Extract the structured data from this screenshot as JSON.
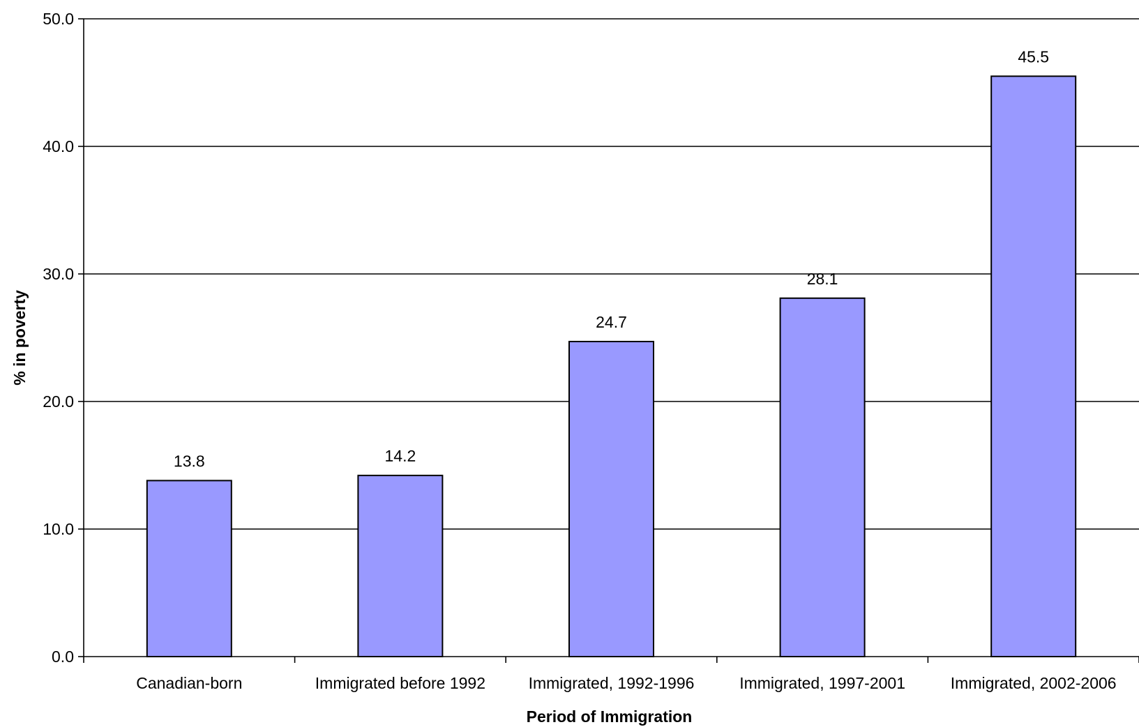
{
  "chart_data": {
    "type": "bar",
    "categories": [
      "Canadian-born",
      "Immigrated before 1992",
      "Immigrated, 1992-1996",
      "Immigrated, 1997-2001",
      "Immigrated, 2002-2006"
    ],
    "values": [
      13.8,
      14.2,
      24.7,
      28.1,
      45.5
    ],
    "data_labels": [
      "13.8",
      "14.2",
      "24.7",
      "28.1",
      "45.5"
    ],
    "xlabel": "Period of Immigration",
    "ylabel": "% in poverty",
    "ylim": [
      0,
      50
    ],
    "yticks": [
      0,
      10,
      20,
      30,
      40,
      50
    ],
    "ytick_labels": [
      "0.0",
      "10.0",
      "20.0",
      "30.0",
      "40.0",
      "50.0"
    ],
    "grid": true,
    "legend": "none",
    "bar_color": "#9999ff"
  }
}
